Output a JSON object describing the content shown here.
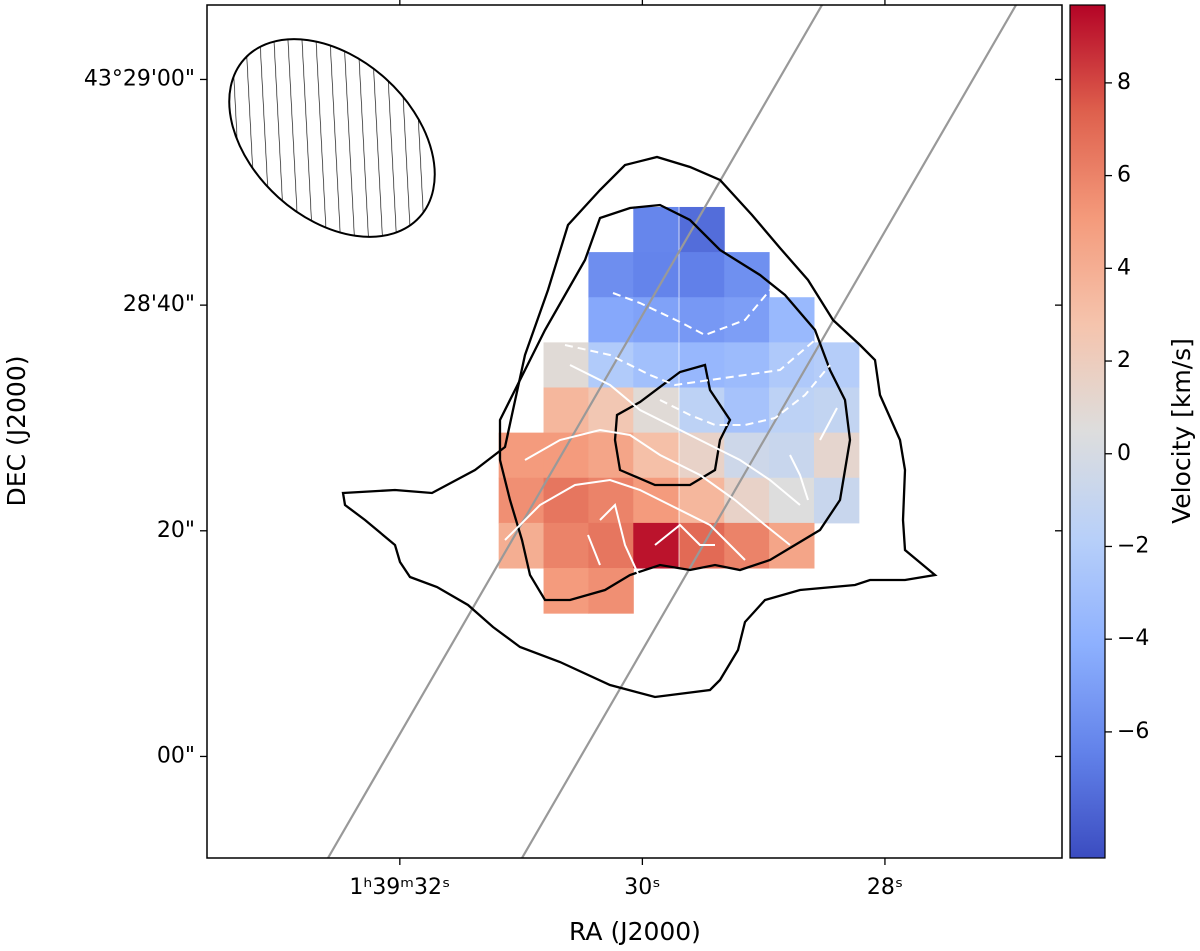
{
  "chart_data": {
    "type": "heatmap",
    "x_label": "RA (J2000)",
    "y_label": "DEC (J2000)",
    "colorbar_label": "Velocity [km/s]",
    "colormap": "coolwarm",
    "xlim": [
      33.59,
      26.54
    ],
    "ylim": [
      -9.0,
      66.6
    ],
    "xticks": [
      {
        "value": 32,
        "label": "1ʰ39ᵐ32ˢ"
      },
      {
        "value": 30,
        "label": "30ˢ"
      },
      {
        "value": 28,
        "label": "28ˢ"
      }
    ],
    "yticks": [
      {
        "value": 60,
        "label": "43°29'00\""
      },
      {
        "value": 40,
        "label": "28'40\""
      },
      {
        "value": 20,
        "label": "20\""
      },
      {
        "value": 0,
        "label": "00\""
      }
    ],
    "clim": [
      -8.72,
      9.68
    ],
    "cticks": [
      {
        "value": -6,
        "label": "−6"
      },
      {
        "value": -4,
        "label": "−4"
      },
      {
        "value": -2,
        "label": "−2"
      },
      0,
      2,
      4,
      6,
      8
    ],
    "x": [
      31.0,
      30.63,
      30.26,
      29.89,
      29.51,
      29.14,
      28.77,
      28.4
    ],
    "y": [
      46.7,
      42.7,
      38.7,
      34.7,
      30.7,
      26.7,
      22.7,
      18.7,
      14.7
    ],
    "values": [
      [
        null,
        null,
        null,
        -6.2,
        -7.3,
        null,
        null,
        null
      ],
      [
        null,
        null,
        -5.8,
        -6.3,
        -6.5,
        -5.7,
        null,
        null
      ],
      [
        null,
        null,
        -4.5,
        -4.8,
        -5.3,
        -5.0,
        -3.5,
        null
      ],
      [
        null,
        0.8,
        -2.2,
        -3.0,
        -3.6,
        -3.3,
        -2.3,
        -2.0
      ],
      [
        null,
        3.5,
        2.5,
        0.8,
        -1.5,
        -2.8,
        -1.5,
        -1.2
      ],
      [
        5.0,
        5.0,
        4.5,
        3.0,
        1.5,
        -0.5,
        -0.8,
        1.2
      ],
      [
        5.5,
        6.5,
        6.0,
        5.0,
        3.5,
        1.5,
        0.5,
        -0.8
      ],
      [
        4.0,
        6.0,
        6.5,
        9.3,
        7.0,
        6.0,
        4.5,
        null
      ],
      [
        null,
        5.0,
        5.5,
        null,
        null,
        null,
        null,
        null
      ]
    ]
  }
}
